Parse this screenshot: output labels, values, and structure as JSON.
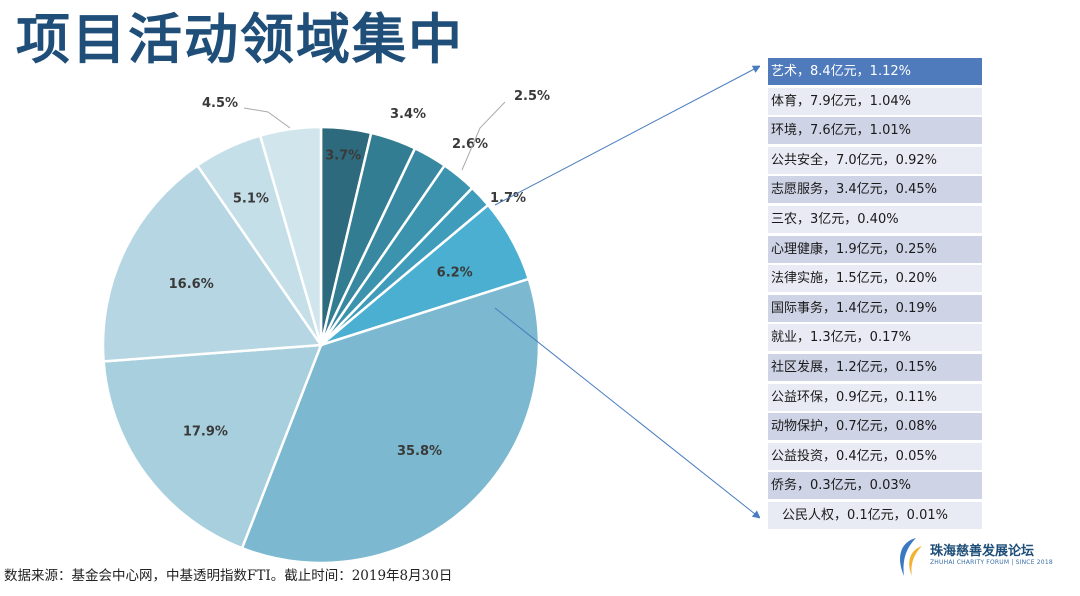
{
  "title": "项目活动领域集中",
  "colors": {
    "title": "#1f4e79",
    "slices": [
      "#2e6a7d",
      "#337d92",
      "#3788a0",
      "#3b93ad",
      "#3f9cba",
      "#4aafd0",
      "#7cb8cf",
      "#a8cfdd",
      "#b5d6e2",
      "#c5dfe8",
      "#d1e5ec"
    ],
    "list_highlight": "#4f7bbd",
    "list_odd": "#cfd3e6",
    "list_even": "#e8eaf4",
    "arrow": "#4a7dbf"
  },
  "chart_data": {
    "type": "pie",
    "title": "",
    "start": "top, clockwise",
    "slices": [
      {
        "value": 3.7,
        "label": "3.7%"
      },
      {
        "value": 3.4,
        "label": "3.4%"
      },
      {
        "value": 2.5,
        "label": "2.5%"
      },
      {
        "value": 2.6,
        "label": "2.6%"
      },
      {
        "value": 1.7,
        "label": "1.7%"
      },
      {
        "value": 6.2,
        "label": "6.2%"
      },
      {
        "value": 35.8,
        "label": "35.8%"
      },
      {
        "value": 17.9,
        "label": "17.9%"
      },
      {
        "value": 16.6,
        "label": "16.6%"
      },
      {
        "value": 5.1,
        "label": "5.1%"
      },
      {
        "value": 4.5,
        "label": "4.5%"
      }
    ]
  },
  "breakdown": [
    {
      "text": "艺术，8.4亿元，1.12%"
    },
    {
      "text": "体育，7.9亿元，1.04%"
    },
    {
      "text": "环境，7.6亿元，1.01%"
    },
    {
      "text": "公共安全，7.0亿元，0.92%"
    },
    {
      "text": "志愿服务，3.4亿元，0.45%"
    },
    {
      "text": "三农，3亿元，0.40%"
    },
    {
      "text": "心理健康，1.9亿元，0.25%"
    },
    {
      "text": "法律实施，1.5亿元，0.20%"
    },
    {
      "text": "国际事务，1.4亿元，0.19%"
    },
    {
      "text": "就业，1.3亿元，0.17%"
    },
    {
      "text": "社区发展，1.2亿元，0.15%"
    },
    {
      "text": "公益环保，0.9亿元，0.11%"
    },
    {
      "text": "动物保护，0.7亿元，0.08%"
    },
    {
      "text": "公益投资，0.4亿元，0.05%"
    },
    {
      "text": "侨务，0.3亿元，0.03%"
    },
    {
      "text": "公民人权，0.1亿元，0.01%"
    }
  ],
  "source_note": "数据来源：基金会中心网，中基透明指数FTI。截止时间：2019年8月30日",
  "logo": {
    "name": "珠海慈善发展论坛",
    "subtitle": "ZHUHAI CHARITY FORUM | SINCE 2018"
  }
}
